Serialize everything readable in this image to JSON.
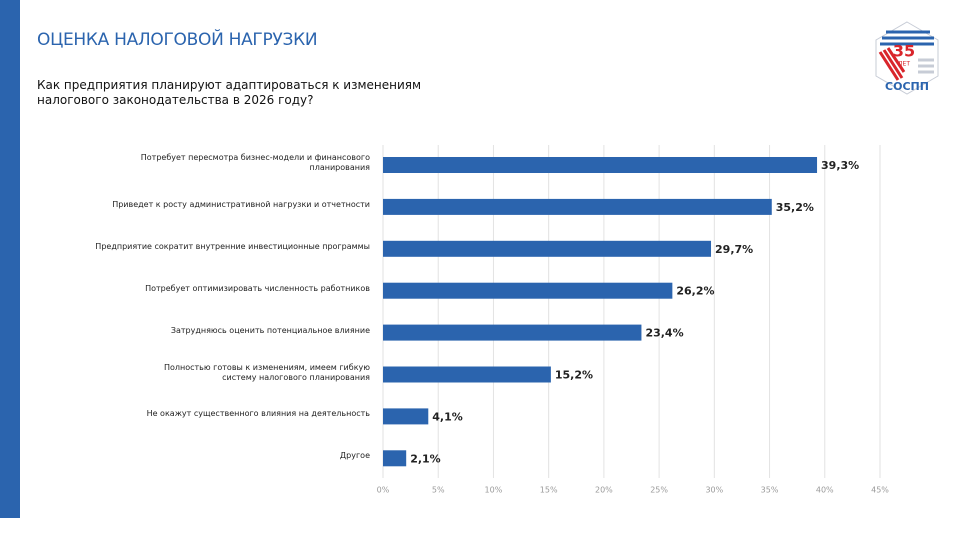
{
  "header": {
    "title": "ОЦЕНКА НАЛОГОВОЙ НАГРУЗКИ",
    "question": "Как предприятия планируют адаптироваться к изменениям налогового законодательства в 2026 году?"
  },
  "logo": {
    "number": "35",
    "years": "ЛЕТ",
    "name": "СОСПП"
  },
  "chart_data": {
    "type": "barh",
    "categories": [
      "Потребует пересмотра бизнес-модели и финансового планирования",
      "Приведет к росту административной нагрузки и отчетности",
      "Предприятие сократит внутренние инвестиционные программы",
      "Потребует оптимизировать численность работников",
      "Затрудняюсь оценить потенциальное влияние",
      "Полностью готовы к изменениям, имеем гибкую систему налогового планирования",
      "Не окажут существенного влияния на деятельность",
      "Другое"
    ],
    "values": [
      39.3,
      35.2,
      29.7,
      26.2,
      23.4,
      15.2,
      4.1,
      2.1
    ],
    "value_labels": [
      "39,3%",
      "35,2%",
      "29,7%",
      "26,2%",
      "23,4%",
      "15,2%",
      "4,1%",
      "2,1%"
    ],
    "color": "#2b64ae",
    "xlim": [
      0,
      45
    ],
    "xticks": [
      {
        "value": 0,
        "label": "0%"
      },
      {
        "value": 5,
        "label": "5%"
      },
      {
        "value": 10,
        "label": "10%"
      },
      {
        "value": 15,
        "label": "15%"
      },
      {
        "value": 20,
        "label": "20%"
      },
      {
        "value": 25,
        "label": "25%"
      },
      {
        "value": 30,
        "label": "30%"
      },
      {
        "value": 35,
        "label": "35%"
      },
      {
        "value": 40,
        "label": "40%"
      },
      {
        "value": 45,
        "label": "45%"
      }
    ],
    "grid": true
  }
}
